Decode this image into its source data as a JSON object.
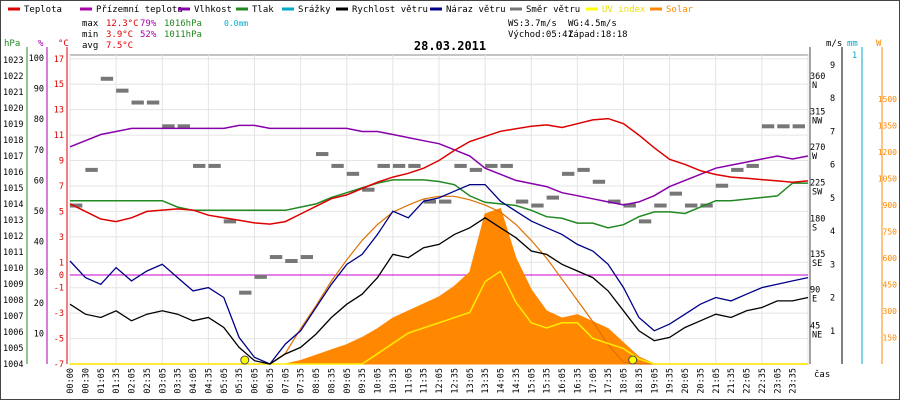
{
  "chart_data": {
    "type": "line",
    "title": "28.03.2011",
    "legend": [
      {
        "label": "Teplota",
        "color": "#dd0000"
      },
      {
        "label": "Přízemní teplota",
        "color": "#aa00aa"
      },
      {
        "label": "Vlhkost",
        "color": "#8800aa"
      },
      {
        "label": "Tlak",
        "color": "#228822"
      },
      {
        "label": "Srážky",
        "color": "#00aacc"
      },
      {
        "label": "Rychlost větru",
        "color": "#000000"
      },
      {
        "label": "Náraz větru",
        "color": "#000088"
      },
      {
        "label": "Směr větru",
        "color": "#777777"
      },
      {
        "label": "UV index",
        "color": "#ffff00"
      },
      {
        "label": "Solar",
        "color": "#ff8800"
      }
    ],
    "stats": {
      "max_label": "max",
      "max_temp": "12.3°C",
      "max_hum": "79%",
      "max_press": "1016hPa",
      "max_rain": "0.0mm",
      "min_label": "min",
      "min_temp": "3.9°C",
      "min_hum": "52%",
      "min_press": "1011hPa",
      "avg_label": "avg",
      "avg_temp": "7.5°C"
    },
    "wind_info": {
      "ws": "WS:3.7m/s",
      "wg": "WG:4.5m/s",
      "sunrise": "Východ:05:41",
      "sunset": "Západ:18:18"
    },
    "axes": {
      "hpa": {
        "unit": "hPa",
        "ticks": [
          "1023",
          "1022",
          "1021",
          "1020",
          "1019",
          "1018",
          "1017",
          "1016",
          "1015",
          "1014",
          "1013",
          "1012",
          "1011",
          "1010",
          "1009",
          "1008",
          "1007",
          "1006",
          "1005",
          "1004"
        ],
        "color": "#228822"
      },
      "pct": {
        "unit": "%",
        "ticks": [
          "100",
          "90",
          "80",
          "70",
          "60",
          "50",
          "40",
          "30",
          "20",
          "10"
        ],
        "color": "#aa00aa"
      },
      "temp": {
        "unit": "°C",
        "ticks": [
          "17",
          "15",
          "13",
          "11",
          "9",
          "7",
          "5",
          "3",
          "1",
          "0",
          "-1",
          "-3",
          "-5",
          "-7"
        ],
        "color": "#dd0000"
      },
      "dir": {
        "labels": [
          "360 N",
          "315 NW",
          "270 W",
          "225 SW",
          "180 S",
          "135 SE",
          "90 E",
          "45 NE"
        ]
      },
      "ms": {
        "unit": "m/s",
        "ticks": [
          "9",
          "8",
          "7",
          "6",
          "5",
          "4",
          "3",
          "2",
          "1"
        ],
        "color": "#000000"
      },
      "mm": {
        "unit": "mm",
        "ticks": [
          "1"
        ],
        "color": "#00aacc"
      },
      "w": {
        "unit": "W",
        "ticks": [
          "1500",
          "1350",
          "1200",
          "1050",
          "900",
          "750",
          "600",
          "450",
          "300",
          "150"
        ],
        "color": "#ff8800"
      }
    },
    "time_labels": [
      "00:00",
      "00:30",
      "01:05",
      "01:35",
      "02:05",
      "02:35",
      "03:05",
      "03:35",
      "04:05",
      "04:35",
      "05:05",
      "05:35",
      "06:05",
      "06:35",
      "07:05",
      "07:35",
      "08:05",
      "08:35",
      "09:05",
      "09:35",
      "10:05",
      "10:35",
      "11:05",
      "11:35",
      "12:05",
      "12:35",
      "13:05",
      "13:35",
      "14:05",
      "14:35",
      "15:05",
      "15:35",
      "16:05",
      "16:35",
      "17:05",
      "17:35",
      "18:05",
      "18:35",
      "19:05",
      "19:35",
      "20:05",
      "20:35",
      "21:05",
      "21:35",
      "22:05",
      "22:35",
      "23:05",
      "23:35"
    ],
    "x_unit": "čas",
    "x_hours": [
      0,
      0.5,
      1,
      1.5,
      2,
      2.5,
      3,
      3.5,
      4,
      4.5,
      5,
      5.5,
      6,
      6.5,
      7,
      7.5,
      8,
      8.5,
      9,
      9.5,
      10,
      10.5,
      11,
      11.5,
      12,
      12.5,
      13,
      13.5,
      14,
      14.5,
      15,
      15.5,
      16,
      16.5,
      17,
      17.5,
      18,
      18.5,
      19,
      19.5,
      20,
      20.5,
      21,
      21.5,
      22,
      22.5,
      23,
      23.5,
      24
    ],
    "series": [
      {
        "name": "Teplota",
        "unit": "°C",
        "values": [
          5.6,
          5.0,
          4.4,
          4.2,
          4.5,
          5.0,
          5.1,
          5.2,
          5.1,
          4.7,
          4.5,
          4.3,
          4.1,
          4.0,
          4.2,
          4.8,
          5.4,
          6.0,
          6.3,
          6.8,
          7.3,
          7.7,
          8.0,
          8.4,
          9.0,
          9.8,
          10.5,
          10.9,
          11.3,
          11.5,
          11.7,
          11.8,
          11.6,
          11.9,
          12.2,
          12.3,
          11.9,
          11.0,
          10.0,
          9.1,
          8.7,
          8.2,
          7.9,
          7.7,
          7.6,
          7.5,
          7.4,
          7.3,
          7.4
        ]
      },
      {
        "name": "Vlhkost",
        "unit": "%",
        "values": [
          71,
          73,
          75,
          76,
          77,
          77,
          77,
          77,
          77,
          77,
          77,
          78,
          78,
          77,
          77,
          77,
          77,
          77,
          77,
          76,
          76,
          75,
          74,
          73,
          72,
          70,
          68,
          64,
          62,
          60,
          59,
          58,
          56,
          55,
          54,
          53,
          52,
          53,
          55,
          58,
          60,
          62,
          64,
          65,
          66,
          67,
          68,
          67,
          68
        ]
      },
      {
        "name": "Tlak",
        "unit": "hPa",
        "values": [
          1014.2,
          1014.2,
          1014.2,
          1014.2,
          1014.2,
          1014.2,
          1014.2,
          1013.8,
          1013.6,
          1013.6,
          1013.6,
          1013.6,
          1013.6,
          1013.6,
          1013.6,
          1013.8,
          1014.0,
          1014.4,
          1014.7,
          1015.0,
          1015.3,
          1015.5,
          1015.5,
          1015.5,
          1015.4,
          1015.2,
          1014.5,
          1014.1,
          1014.0,
          1013.9,
          1013.6,
          1013.2,
          1013.1,
          1012.8,
          1012.8,
          1012.5,
          1012.7,
          1013.2,
          1013.5,
          1013.5,
          1013.4,
          1013.8,
          1014.2,
          1014.2,
          1014.3,
          1014.4,
          1014.5,
          1015.3,
          1015.3
        ]
      },
      {
        "name": "Rychlost větru",
        "unit": "m/s",
        "values": [
          1.8,
          1.5,
          1.4,
          1.6,
          1.3,
          1.5,
          1.6,
          1.5,
          1.3,
          1.4,
          1.1,
          0.5,
          0.1,
          0.0,
          0.3,
          0.5,
          0.9,
          1.4,
          1.8,
          2.1,
          2.6,
          3.3,
          3.2,
          3.5,
          3.6,
          3.9,
          4.1,
          4.4,
          4.1,
          3.8,
          3.4,
          3.3,
          3.0,
          2.8,
          2.6,
          2.2,
          1.6,
          1.0,
          0.7,
          0.8,
          1.1,
          1.3,
          1.5,
          1.4,
          1.6,
          1.7,
          1.9,
          1.9,
          2.0
        ]
      },
      {
        "name": "Náraz větru",
        "unit": "m/s",
        "values": [
          3.1,
          2.6,
          2.4,
          2.9,
          2.5,
          2.8,
          3.0,
          2.6,
          2.2,
          2.3,
          2.0,
          0.8,
          0.2,
          0.0,
          0.6,
          1.0,
          1.7,
          2.4,
          3.0,
          3.3,
          3.9,
          4.6,
          4.4,
          4.9,
          5.0,
          5.2,
          5.4,
          5.4,
          4.9,
          4.6,
          4.3,
          4.1,
          3.9,
          3.6,
          3.4,
          3.0,
          2.3,
          1.4,
          1.0,
          1.2,
          1.5,
          1.8,
          2.0,
          1.9,
          2.1,
          2.3,
          2.4,
          2.5,
          2.6
        ]
      },
      {
        "name": "UV index",
        "unit": "",
        "values": [
          0,
          0,
          0,
          0,
          0,
          0,
          0,
          0,
          0,
          0,
          0,
          0,
          0,
          0,
          0,
          0,
          0,
          0,
          0,
          0,
          0.2,
          0.4,
          0.6,
          0.7,
          0.8,
          0.9,
          1.0,
          1.6,
          1.8,
          1.2,
          0.8,
          0.7,
          0.8,
          0.8,
          0.5,
          0.4,
          0.3,
          0.1,
          0,
          0,
          0,
          0,
          0,
          0,
          0,
          0,
          0,
          0,
          0
        ]
      },
      {
        "name": "Solar",
        "unit": "W",
        "values": [
          0,
          0,
          0,
          0,
          0,
          0,
          0,
          0,
          0,
          0,
          0,
          0,
          0,
          0,
          0,
          20,
          50,
          80,
          110,
          150,
          200,
          260,
          300,
          340,
          380,
          440,
          520,
          850,
          880,
          600,
          420,
          300,
          260,
          280,
          240,
          200,
          120,
          40,
          0,
          0,
          0,
          0,
          0,
          0,
          0,
          0,
          0,
          0,
          0
        ]
      },
      {
        "name": "Solar max",
        "unit": "W",
        "values": [
          0,
          0,
          0,
          0,
          0,
          0,
          0,
          0,
          0,
          0,
          0,
          0,
          0,
          0,
          60,
          200,
          330,
          470,
          590,
          700,
          790,
          860,
          900,
          935,
          950,
          950,
          930,
          900,
          860,
          790,
          700,
          600,
          480,
          360,
          240,
          110,
          10,
          0,
          0,
          0,
          0,
          0,
          0,
          0,
          0,
          0,
          0,
          0,
          0
        ]
      },
      {
        "name": "Směr větru",
        "unit": "°",
        "values": [
          200,
          245,
          360,
          345,
          330,
          330,
          300,
          300,
          250,
          250,
          180,
          90,
          110,
          135,
          130,
          135,
          265,
          250,
          240,
          220,
          250,
          250,
          250,
          205,
          205,
          250,
          245,
          250,
          250,
          205,
          200,
          210,
          240,
          245,
          230,
          205,
          200,
          180,
          200,
          215,
          200,
          200,
          225,
          245,
          250,
          300,
          300,
          300,
          300
        ]
      }
    ]
  }
}
